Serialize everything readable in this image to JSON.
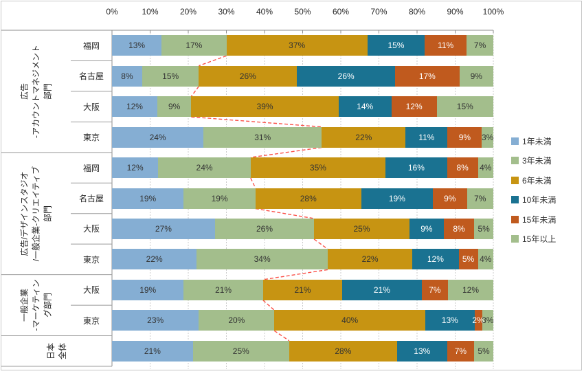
{
  "chart_data": {
    "type": "bar",
    "stacked": true,
    "orientation": "horizontal",
    "title": "",
    "label_format": "{value}%",
    "x_axis": {
      "tick_labels": [
        "0%",
        "10%",
        "20%",
        "30%",
        "40%",
        "50%",
        "60%",
        "70%",
        "80%",
        "90%",
        "100%"
      ],
      "range": [
        0,
        100
      ],
      "grid": "dotted-vertical"
    },
    "legend_position": "right",
    "legend": [
      {
        "label": "1年未満",
        "color": "#85AED3",
        "value_text_color": "#333333"
      },
      {
        "label": "3年未満",
        "color": "#A3BE8C",
        "value_text_color": "#333333"
      },
      {
        "label": "6年未満",
        "color": "#C79412",
        "value_text_color": "#333333"
      },
      {
        "label": "10年未満",
        "color": "#1A7291",
        "value_text_color": "#FFFFFF"
      },
      {
        "label": "15年未満",
        "color": "#C05A1E",
        "value_text_color": "#FFFFFF"
      },
      {
        "label": "15年以上",
        "color": "#A3BE8C",
        "value_text_color": "#333333"
      }
    ],
    "groups": [
      {
        "label_lines": [
          "広告",
          "-アカウントマネジメント",
          "部門"
        ],
        "row_count": 4
      },
      {
        "label_lines": [
          "広告/デザインスタジオ",
          "/一般企業-クリエイティブ",
          "部門"
        ],
        "row_count": 4
      },
      {
        "label_lines": [
          "一般企業",
          "-マーケティン",
          "グ部門"
        ],
        "row_count": 2
      },
      {
        "label_lines": [
          "日本",
          "全体"
        ],
        "row_count": 1
      }
    ],
    "rows": [
      {
        "group": 0,
        "city": "福岡",
        "values": [
          13,
          17,
          37,
          15,
          11,
          7
        ]
      },
      {
        "group": 0,
        "city": "名古屋",
        "values": [
          8,
          15,
          26,
          26,
          17,
          9
        ]
      },
      {
        "group": 0,
        "city": "大阪",
        "values": [
          12,
          9,
          39,
          14,
          12,
          15
        ]
      },
      {
        "group": 0,
        "city": "東京",
        "values": [
          24,
          31,
          22,
          11,
          9,
          3
        ]
      },
      {
        "group": 1,
        "city": "福岡",
        "values": [
          12,
          24,
          35,
          16,
          8,
          4
        ]
      },
      {
        "group": 1,
        "city": "名古屋",
        "values": [
          19,
          19,
          28,
          19,
          9,
          7
        ]
      },
      {
        "group": 1,
        "city": "大阪",
        "values": [
          27,
          26,
          25,
          9,
          8,
          5
        ]
      },
      {
        "group": 1,
        "city": "東京",
        "values": [
          22,
          34,
          22,
          12,
          5,
          4
        ]
      },
      {
        "group": 2,
        "city": "大阪",
        "values": [
          19,
          21,
          21,
          21,
          7,
          12
        ]
      },
      {
        "group": 2,
        "city": "東京",
        "values": [
          23,
          20,
          40,
          13,
          2,
          3
        ]
      },
      {
        "group": 3,
        "city": "",
        "values": [
          21,
          25,
          28,
          13,
          7,
          5
        ]
      }
    ],
    "connectors": {
      "description": "red dashed lines linking the cumulative boundary after the 2nd segment of consecutive bars",
      "color": "#FB5149",
      "style": "dashed"
    },
    "colors": {
      "axis_line": "#8C8C8C",
      "grid_line": "#969696",
      "table_line": "#9B9B9B",
      "outer_border": "#C6C6C6",
      "text": "#262626"
    }
  }
}
